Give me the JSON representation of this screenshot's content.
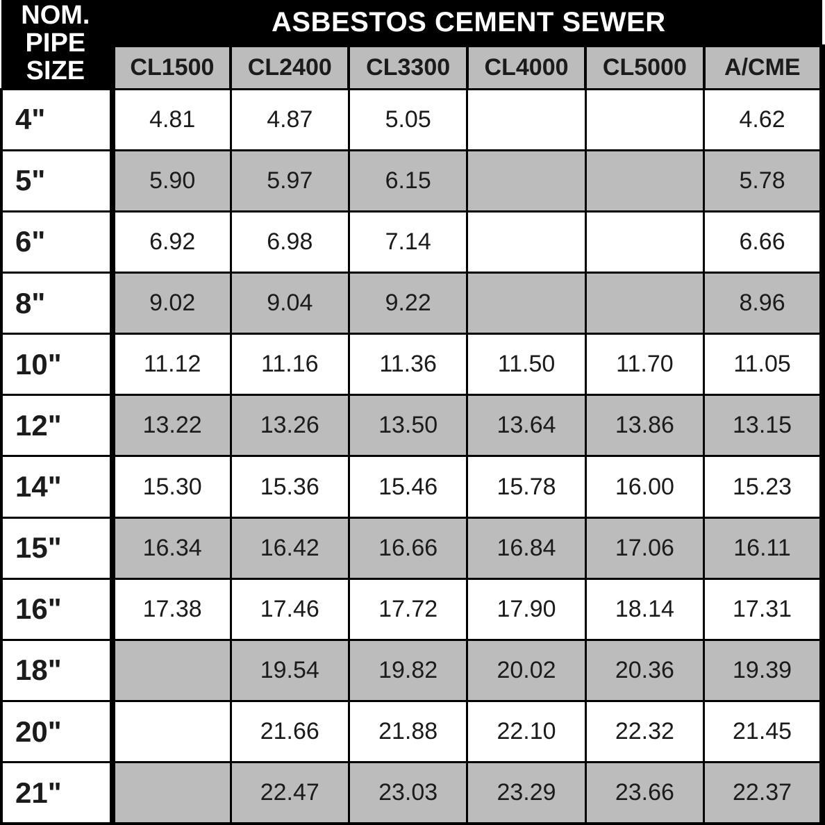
{
  "table": {
    "type": "table",
    "title": "ASBESTOS CEMENT SEWER",
    "row_header_label_line1": "NOM.",
    "row_header_label_line2": "PIPE",
    "row_header_label_line3": "SIZE",
    "columns": [
      "CL1500",
      "CL2400",
      "CL3300",
      "CL4000",
      "CL5000",
      "A/CME"
    ],
    "rows": [
      {
        "size": "4\"",
        "values": [
          "4.81",
          "4.87",
          "5.05",
          "",
          "",
          "4.62"
        ]
      },
      {
        "size": "5\"",
        "values": [
          "5.90",
          "5.97",
          "6.15",
          "",
          "",
          "5.78"
        ]
      },
      {
        "size": "6\"",
        "values": [
          "6.92",
          "6.98",
          "7.14",
          "",
          "",
          "6.66"
        ]
      },
      {
        "size": "8\"",
        "values": [
          "9.02",
          "9.04",
          "9.22",
          "",
          "",
          "8.96"
        ]
      },
      {
        "size": "10\"",
        "values": [
          "11.12",
          "11.16",
          "11.36",
          "11.50",
          "11.70",
          "11.05"
        ]
      },
      {
        "size": "12\"",
        "values": [
          "13.22",
          "13.26",
          "13.50",
          "13.64",
          "13.86",
          "13.15"
        ]
      },
      {
        "size": "14\"",
        "values": [
          "15.30",
          "15.36",
          "15.46",
          "15.78",
          "16.00",
          "15.23"
        ]
      },
      {
        "size": "15\"",
        "values": [
          "16.34",
          "16.42",
          "16.66",
          "16.84",
          "17.06",
          "16.11"
        ]
      },
      {
        "size": "16\"",
        "values": [
          "17.38",
          "17.46",
          "17.72",
          "17.90",
          "18.14",
          "17.31"
        ]
      },
      {
        "size": "18\"",
        "values": [
          "",
          "19.54",
          "19.82",
          "20.02",
          "20.36",
          "19.39"
        ]
      },
      {
        "size": "20\"",
        "values": [
          "",
          "21.66",
          "21.88",
          "22.10",
          "22.32",
          "21.45"
        ]
      },
      {
        "size": "21\"",
        "values": [
          "",
          "22.47",
          "23.03",
          "23.29",
          "23.66",
          "22.37"
        ]
      }
    ],
    "colors": {
      "header_bg": "#000000",
      "header_text": "#ffffff",
      "subheader_bg": "#bcbcbc",
      "row_alt_bg": "#bcbcbc",
      "row_bg": "#ffffff",
      "text": "#1b1b1b",
      "border": "#000000"
    },
    "fontsizes": {
      "title": 40,
      "size_header": 38,
      "col_header": 34,
      "size_cell": 42,
      "value_cell": 34
    }
  }
}
